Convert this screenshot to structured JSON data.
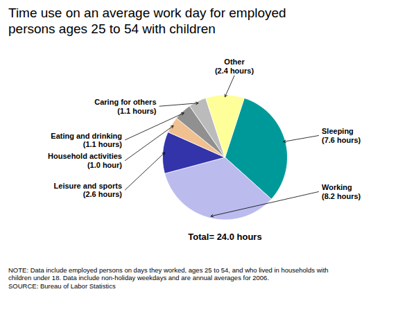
{
  "chart_data": {
    "type": "pie",
    "title": "Time use on an average work day for employed\npersons ages 25 to 54 with children",
    "categories": [
      "Sleeping",
      "Working",
      "Leisure and sports",
      "Household activities",
      "Eating and drinking",
      "Caring for others",
      "Other"
    ],
    "values": [
      7.6,
      8.2,
      2.6,
      1.0,
      1.1,
      1.1,
      2.4
    ],
    "colors": [
      "#009999",
      "#BBBBEE",
      "#3333AA",
      "#F0C090",
      "#909090",
      "#BBBBBB",
      "#FFFF99"
    ],
    "data_labels": true,
    "value_labels": [
      "Sleeping\n(7.6 hours)",
      "Working\n(8.2 hours)",
      "Leisure and sports\n(2.6 hours)",
      "Household activities\n(1.0 hour)",
      "Eating and drinking\n(1.1 hours)",
      "Caring for others\n(1.1 hours)",
      "Other\n(2.4 hours)"
    ],
    "annotations": [
      "Total= 24.0 hours"
    ],
    "note": "NOTE: Data include employed persons on days they worked, ages 25 to 54, and who lived in households with\nchildren under 18. Data include non-holiday weekdays and are annual averages for 2006.",
    "source": "SOURCE: Bureau of Labor Statistics"
  }
}
